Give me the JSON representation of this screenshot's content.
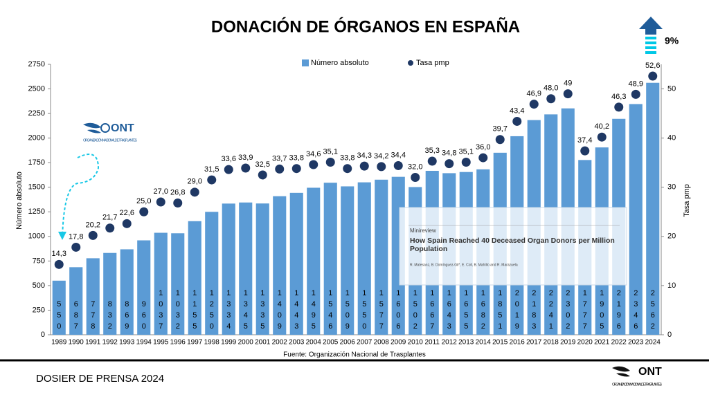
{
  "chart_data": {
    "type": "bar+scatter",
    "title": "DONACIÓN DE ÓRGANOS EN ESPAÑA",
    "ylabel": "Número absoluto",
    "y2label": "Tasa pmp",
    "source": "Fuente: Organización Nacional de Trasplantes",
    "growth_annotation": "9%",
    "legend_position": "top",
    "categories": [
      "1989",
      "1990",
      "1991",
      "1992",
      "1993",
      "1994",
      "1995",
      "1996",
      "1997",
      "1998",
      "1999",
      "2000",
      "2001",
      "2002",
      "2003",
      "2004",
      "2005",
      "2006",
      "2007",
      "2008",
      "2009",
      "2010",
      "2011",
      "2012",
      "2013",
      "2014",
      "2015",
      "2016",
      "2017",
      "2018",
      "2019",
      "2020",
      "2021",
      "2022",
      "2023",
      "2024"
    ],
    "series": [
      {
        "name": "Número absoluto",
        "type": "bar",
        "color": "#5b9bd5",
        "values": [
          550,
          687,
          778,
          832,
          869,
          960,
          1037,
          1032,
          1155,
          1250,
          1334,
          1345,
          1335,
          1409,
          1443,
          1495,
          1546,
          1509,
          1550,
          1577,
          1606,
          1502,
          1667,
          1643,
          1655,
          1682,
          1851,
          2019,
          2183,
          2241,
          2302,
          1777,
          1905,
          2196,
          2346,
          2562
        ]
      },
      {
        "name": "Tasa pmp",
        "type": "scatter",
        "axis": "y2",
        "color": "#1f3864",
        "values": [
          14.3,
          17.8,
          20.2,
          21.7,
          22.6,
          25.0,
          27.0,
          26.8,
          29.0,
          31.5,
          33.6,
          33.9,
          32.5,
          33.7,
          33.8,
          34.6,
          35.1,
          33.8,
          34.3,
          34.2,
          34.4,
          32.0,
          35.3,
          34.8,
          35.1,
          36.0,
          39.7,
          43.4,
          46.9,
          48.0,
          49,
          37.4,
          40.2,
          46.3,
          48.9,
          52.6
        ],
        "value_labels": [
          "14,3",
          "17,8",
          "20,2",
          "21,7",
          "22,6",
          "25,0",
          "27,0",
          "26,8",
          "29,0",
          "31,5",
          "33,6",
          "33,9",
          "32,5",
          "33,7",
          "33,8",
          "34,6",
          "35,1",
          "33,8",
          "34,3",
          "34,2",
          "34,4",
          "32,0",
          "35,3",
          "34,8",
          "35,1",
          "36,0",
          "39,7",
          "43,4",
          "46,9",
          "48,0",
          "49",
          "37,4",
          "40,2",
          "46,3",
          "48,9",
          "52,6"
        ]
      }
    ],
    "ylim": [
      0,
      2750
    ],
    "yticks": [
      0,
      250,
      500,
      750,
      1000,
      1250,
      1500,
      1750,
      2000,
      2250,
      2500,
      2750
    ],
    "y2lim": [
      0,
      55
    ],
    "y2ticks": [
      0,
      10,
      20,
      30,
      40,
      50
    ]
  },
  "logo": {
    "acronym": "ONT",
    "name": "ORGANIZACIÓN NACIONAL DE TRASPLANTES"
  },
  "inset": {
    "kind": "Minireview",
    "title": "How Spain Reached 40 Deceased Organ Donors per Million Population",
    "authors": "R. Matesanz, B. Domínguez-Gil*, E. Coll, B. Mahíllo and R. Marazuela"
  },
  "footer": {
    "text": "DOSIER DE PRENSA 2024"
  }
}
